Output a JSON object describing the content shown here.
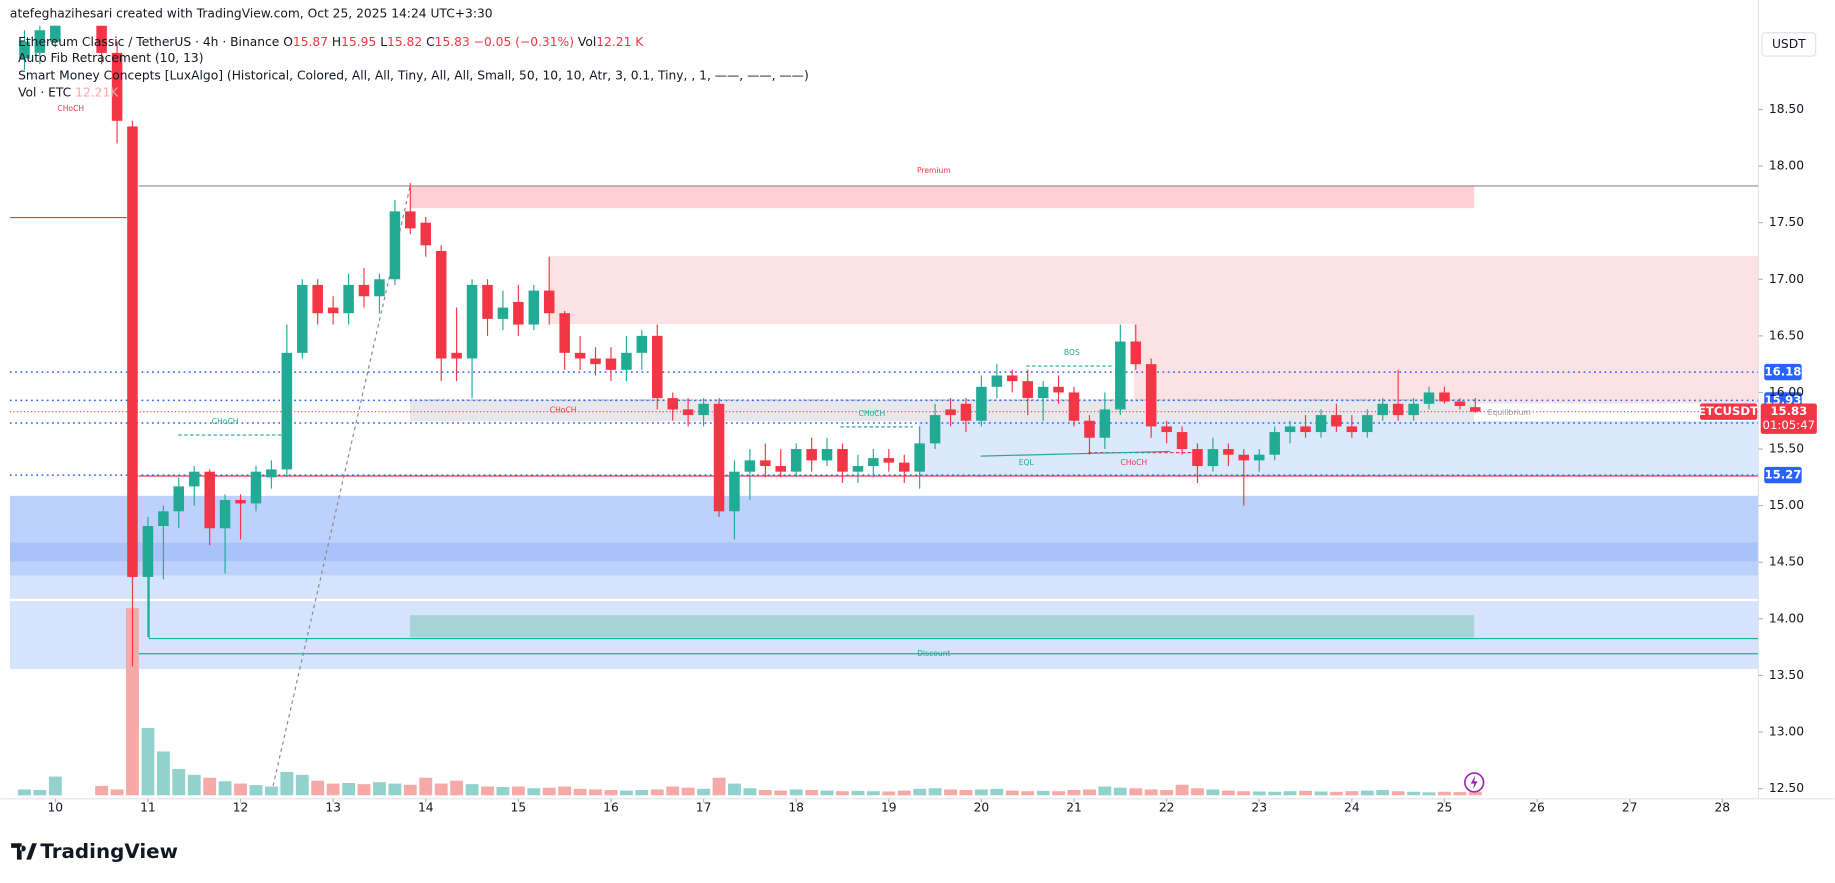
{
  "watermark": "atefeghazihesari created with TradingView.com, Oct 25, 2025 14:24 UTC+3:30",
  "logo": "TradingView",
  "currency": "USDT",
  "chart_data": {
    "type": "candlestick",
    "symbol_tag": "ETCUSDT",
    "countdown": "01:05:47",
    "legend": {
      "symbol": "Ethereum Classic / TetherUS · 4h · Binance",
      "ohlc": [
        "O",
        "H",
        "L",
        "C"
      ],
      "change": "−0.05 (−0.31%)",
      "vol": "Vol",
      "vol_value": "12.21 K",
      "indicators": [
        "Auto Fib Retracement (10, 13)",
        "Smart Money Concepts [LuxAlgo] (Historical, Colored, All, All, Tiny, All, All, Small, 50, 10, 10, Atr, 3, 0.1, Tiny, , 1, ——, ——, ——)"
      ],
      "volume_indicator": "Vol · ETC",
      "volume_indicator_value": "12.21K"
    },
    "annotations": {
      "premium": "Premium",
      "discount": "Discount",
      "equilibrium": "Equilibrium",
      "choch": "CHoCH",
      "bos": "BOS",
      "eql": "EQL"
    },
    "up_color": "#22ab94",
    "down_color": "#f23645",
    "up_volume_color": "#92d2cc",
    "down_volume_color": "#f7a9a7",
    "level_color": "#2962ff",
    "grid": false,
    "xlim": [
      9.51,
      28.39
    ],
    "xticks": [
      10,
      11,
      12,
      13,
      14,
      15,
      16,
      17,
      18,
      19,
      20,
      21,
      22,
      23,
      24,
      25,
      26,
      27,
      28
    ],
    "ylim": [
      12.41,
      19.24
    ],
    "yticks": [
      {
        "value": 12.5,
        "label": "12.50"
      },
      {
        "value": 13,
        "label": "13.00"
      },
      {
        "value": 13.5,
        "label": "13.50"
      },
      {
        "value": 14,
        "label": "14.00"
      },
      {
        "value": 14.5,
        "label": "14.50"
      },
      {
        "value": 15,
        "label": "15.00"
      },
      {
        "value": 15.5,
        "label": "15.50"
      },
      {
        "value": 16,
        "label": "16.00"
      },
      {
        "value": 16.5,
        "label": "16.50"
      },
      {
        "value": 17,
        "label": "17.00"
      },
      {
        "value": 17.5,
        "label": "17.50"
      },
      {
        "value": 18,
        "label": "18.00"
      },
      {
        "value": 18.5,
        "label": "18.50"
      }
    ],
    "levels": [
      16.18,
      15.93,
      15.73,
      15.27
    ],
    "candles": [
      {
        "x": 9.667,
        "open": 18.95,
        "high": 19.2,
        "low": 18.85,
        "close": 19.1,
        "volume": 20
      },
      {
        "x": 9.833,
        "open": 19.0,
        "high": 19.25,
        "low": 18.9,
        "close": 19.2,
        "volume": 18
      },
      {
        "x": 10.0,
        "open": 19.1,
        "high": 19.3,
        "low": 19.05,
        "close": 19.25,
        "volume": 64
      },
      {
        "x": 10.5,
        "open": 19.3,
        "high": 19.35,
        "low": 18.9,
        "close": 19.0,
        "volume": 32
      },
      {
        "x": 10.667,
        "open": 19.0,
        "high": 19.1,
        "low": 18.2,
        "close": 18.4,
        "volume": 20
      },
      {
        "x": 10.833,
        "open": 18.35,
        "high": 18.4,
        "low": 13.58,
        "close": 14.37,
        "volume": 640
      },
      {
        "x": 11.0,
        "open": 14.37,
        "high": 14.9,
        "low": 13.84,
        "close": 14.82,
        "volume": 230
      },
      {
        "x": 11.167,
        "open": 14.82,
        "high": 15.0,
        "low": 14.35,
        "close": 14.95,
        "volume": 150
      },
      {
        "x": 11.333,
        "open": 14.95,
        "high": 15.25,
        "low": 14.8,
        "close": 15.17,
        "volume": 90
      },
      {
        "x": 11.5,
        "open": 15.17,
        "high": 15.35,
        "low": 15.0,
        "close": 15.3,
        "volume": 70
      },
      {
        "x": 11.667,
        "open": 15.3,
        "high": 15.32,
        "low": 14.65,
        "close": 14.8,
        "volume": 60
      },
      {
        "x": 11.833,
        "open": 14.8,
        "high": 15.1,
        "low": 14.4,
        "close": 15.05,
        "volume": 48
      },
      {
        "x": 12.0,
        "open": 15.05,
        "high": 15.1,
        "low": 14.7,
        "close": 15.02,
        "volume": 40
      },
      {
        "x": 12.167,
        "open": 15.02,
        "high": 15.35,
        "low": 14.95,
        "close": 15.3,
        "volume": 35
      },
      {
        "x": 12.333,
        "open": 15.25,
        "high": 15.4,
        "low": 15.15,
        "close": 15.32,
        "volume": 30
      },
      {
        "x": 12.5,
        "open": 15.32,
        "high": 16.6,
        "low": 15.25,
        "close": 16.35,
        "volume": 80
      },
      {
        "x": 12.667,
        "open": 16.35,
        "high": 17.0,
        "low": 16.3,
        "close": 16.95,
        "volume": 70
      },
      {
        "x": 12.833,
        "open": 16.95,
        "high": 17.0,
        "low": 16.6,
        "close": 16.7,
        "volume": 50
      },
      {
        "x": 13.0,
        "open": 16.75,
        "high": 16.85,
        "low": 16.6,
        "close": 16.7,
        "volume": 40
      },
      {
        "x": 13.167,
        "open": 16.7,
        "high": 17.05,
        "low": 16.6,
        "close": 16.95,
        "volume": 42
      },
      {
        "x": 13.333,
        "open": 16.95,
        "high": 17.1,
        "low": 16.75,
        "close": 16.85,
        "volume": 38
      },
      {
        "x": 13.5,
        "open": 16.85,
        "high": 17.05,
        "low": 16.7,
        "close": 17.0,
        "volume": 45
      },
      {
        "x": 13.667,
        "open": 17.0,
        "high": 17.7,
        "low": 16.95,
        "close": 17.6,
        "volume": 40
      },
      {
        "x": 13.833,
        "open": 17.6,
        "high": 17.85,
        "low": 17.4,
        "close": 17.45,
        "volume": 36
      },
      {
        "x": 14.0,
        "open": 17.5,
        "high": 17.55,
        "low": 17.2,
        "close": 17.3,
        "volume": 60
      },
      {
        "x": 14.167,
        "open": 17.25,
        "high": 17.3,
        "low": 16.1,
        "close": 16.3,
        "volume": 40
      },
      {
        "x": 14.333,
        "open": 16.35,
        "high": 16.75,
        "low": 16.1,
        "close": 16.3,
        "volume": 50
      },
      {
        "x": 14.5,
        "open": 16.3,
        "high": 17.0,
        "low": 15.95,
        "close": 16.95,
        "volume": 38
      },
      {
        "x": 14.667,
        "open": 16.95,
        "high": 17.0,
        "low": 16.5,
        "close": 16.65,
        "volume": 30
      },
      {
        "x": 14.833,
        "open": 16.65,
        "high": 16.9,
        "low": 16.55,
        "close": 16.75,
        "volume": 28
      },
      {
        "x": 15.0,
        "open": 16.8,
        "high": 16.95,
        "low": 16.5,
        "close": 16.6,
        "volume": 30
      },
      {
        "x": 15.167,
        "open": 16.6,
        "high": 16.95,
        "low": 16.55,
        "close": 16.9,
        "volume": 24
      },
      {
        "x": 15.333,
        "open": 16.9,
        "high": 17.2,
        "low": 16.6,
        "close": 16.7,
        "volume": 26
      },
      {
        "x": 15.5,
        "open": 16.7,
        "high": 16.72,
        "low": 16.2,
        "close": 16.35,
        "volume": 30
      },
      {
        "x": 15.667,
        "open": 16.35,
        "high": 16.5,
        "low": 16.2,
        "close": 16.3,
        "volume": 22
      },
      {
        "x": 15.833,
        "open": 16.3,
        "high": 16.4,
        "low": 16.15,
        "close": 16.25,
        "volume": 20
      },
      {
        "x": 16.0,
        "open": 16.3,
        "high": 16.4,
        "low": 16.1,
        "close": 16.2,
        "volume": 18
      },
      {
        "x": 16.167,
        "open": 16.2,
        "high": 16.5,
        "low": 16.1,
        "close": 16.35,
        "volume": 16
      },
      {
        "x": 16.333,
        "open": 16.35,
        "high": 16.55,
        "low": 16.2,
        "close": 16.5,
        "volume": 18
      },
      {
        "x": 16.5,
        "open": 16.5,
        "high": 16.6,
        "low": 15.85,
        "close": 15.95,
        "volume": 20
      },
      {
        "x": 16.667,
        "open": 15.95,
        "high": 16.0,
        "low": 15.75,
        "close": 15.85,
        "volume": 30
      },
      {
        "x": 16.833,
        "open": 15.85,
        "high": 15.95,
        "low": 15.7,
        "close": 15.8,
        "volume": 26
      },
      {
        "x": 17.0,
        "open": 15.8,
        "high": 15.95,
        "low": 15.7,
        "close": 15.9,
        "volume": 22
      },
      {
        "x": 17.167,
        "open": 15.9,
        "high": 15.95,
        "low": 14.9,
        "close": 14.95,
        "volume": 60
      },
      {
        "x": 17.333,
        "open": 14.95,
        "high": 15.4,
        "low": 14.7,
        "close": 15.3,
        "volume": 40
      },
      {
        "x": 17.5,
        "open": 15.3,
        "high": 15.5,
        "low": 15.05,
        "close": 15.4,
        "volume": 24
      },
      {
        "x": 17.667,
        "open": 15.4,
        "high": 15.55,
        "low": 15.25,
        "close": 15.35,
        "volume": 18
      },
      {
        "x": 17.833,
        "open": 15.35,
        "high": 15.5,
        "low": 15.25,
        "close": 15.3,
        "volume": 16
      },
      {
        "x": 18.0,
        "open": 15.3,
        "high": 15.55,
        "low": 15.25,
        "close": 15.5,
        "volume": 20
      },
      {
        "x": 18.167,
        "open": 15.5,
        "high": 15.6,
        "low": 15.3,
        "close": 15.4,
        "volume": 18
      },
      {
        "x": 18.333,
        "open": 15.4,
        "high": 15.6,
        "low": 15.35,
        "close": 15.5,
        "volume": 16
      },
      {
        "x": 18.5,
        "open": 15.5,
        "high": 15.55,
        "low": 15.2,
        "close": 15.3,
        "volume": 14
      },
      {
        "x": 18.667,
        "open": 15.3,
        "high": 15.45,
        "low": 15.2,
        "close": 15.35,
        "volume": 15
      },
      {
        "x": 18.833,
        "open": 15.35,
        "high": 15.5,
        "low": 15.25,
        "close": 15.42,
        "volume": 14
      },
      {
        "x": 19.0,
        "open": 15.42,
        "high": 15.5,
        "low": 15.3,
        "close": 15.38,
        "volume": 13
      },
      {
        "x": 19.167,
        "open": 15.38,
        "high": 15.45,
        "low": 15.2,
        "close": 15.3,
        "volume": 16
      },
      {
        "x": 19.333,
        "open": 15.3,
        "high": 15.7,
        "low": 15.15,
        "close": 15.55,
        "volume": 22
      },
      {
        "x": 19.5,
        "open": 15.55,
        "high": 15.9,
        "low": 15.5,
        "close": 15.8,
        "volume": 24
      },
      {
        "x": 19.667,
        "open": 15.85,
        "high": 15.95,
        "low": 15.7,
        "close": 15.8,
        "volume": 20
      },
      {
        "x": 19.833,
        "open": 15.9,
        "high": 15.95,
        "low": 15.65,
        "close": 15.75,
        "volume": 18
      },
      {
        "x": 20.0,
        "open": 15.75,
        "high": 16.15,
        "low": 15.7,
        "close": 16.05,
        "volume": 20
      },
      {
        "x": 20.167,
        "open": 16.05,
        "high": 16.25,
        "low": 15.95,
        "close": 16.15,
        "volume": 22
      },
      {
        "x": 20.333,
        "open": 16.15,
        "high": 16.2,
        "low": 16.0,
        "close": 16.1,
        "volume": 16
      },
      {
        "x": 20.5,
        "open": 16.1,
        "high": 16.2,
        "low": 15.8,
        "close": 15.95,
        "volume": 14
      },
      {
        "x": 20.667,
        "open": 15.95,
        "high": 16.1,
        "low": 15.75,
        "close": 16.05,
        "volume": 15
      },
      {
        "x": 20.833,
        "open": 16.05,
        "high": 16.15,
        "low": 15.9,
        "close": 16.0,
        "volume": 14
      },
      {
        "x": 21.0,
        "open": 16.0,
        "high": 16.05,
        "low": 15.7,
        "close": 15.75,
        "volume": 18
      },
      {
        "x": 21.167,
        "open": 15.75,
        "high": 15.8,
        "low": 15.45,
        "close": 15.6,
        "volume": 20
      },
      {
        "x": 21.333,
        "open": 15.6,
        "high": 16.0,
        "low": 15.5,
        "close": 15.85,
        "volume": 30
      },
      {
        "x": 21.5,
        "open": 15.85,
        "high": 16.6,
        "low": 15.8,
        "close": 16.45,
        "volume": 26
      },
      {
        "x": 21.667,
        "open": 16.45,
        "high": 16.6,
        "low": 16.2,
        "close": 16.25,
        "volume": 24
      },
      {
        "x": 21.833,
        "open": 16.25,
        "high": 16.3,
        "low": 15.6,
        "close": 15.7,
        "volume": 20
      },
      {
        "x": 22.0,
        "open": 15.7,
        "high": 15.75,
        "low": 15.55,
        "close": 15.65,
        "volume": 18
      },
      {
        "x": 22.167,
        "open": 15.65,
        "high": 15.7,
        "low": 15.45,
        "close": 15.5,
        "volume": 36
      },
      {
        "x": 22.333,
        "open": 15.5,
        "high": 15.55,
        "low": 15.2,
        "close": 15.35,
        "volume": 24
      },
      {
        "x": 22.5,
        "open": 15.35,
        "high": 15.6,
        "low": 15.3,
        "close": 15.5,
        "volume": 20
      },
      {
        "x": 22.667,
        "open": 15.5,
        "high": 15.55,
        "low": 15.35,
        "close": 15.45,
        "volume": 16
      },
      {
        "x": 22.833,
        "open": 15.45,
        "high": 15.5,
        "low": 15.0,
        "close": 15.4,
        "volume": 14
      },
      {
        "x": 23.0,
        "open": 15.4,
        "high": 15.5,
        "low": 15.3,
        "close": 15.45,
        "volume": 13
      },
      {
        "x": 23.167,
        "open": 15.45,
        "high": 15.7,
        "low": 15.4,
        "close": 15.65,
        "volume": 12
      },
      {
        "x": 23.333,
        "open": 15.65,
        "high": 15.75,
        "low": 15.55,
        "close": 15.7,
        "volume": 14
      },
      {
        "x": 23.5,
        "open": 15.7,
        "high": 15.8,
        "low": 15.6,
        "close": 15.65,
        "volume": 15
      },
      {
        "x": 23.667,
        "open": 15.65,
        "high": 15.85,
        "low": 15.6,
        "close": 15.8,
        "volume": 13
      },
      {
        "x": 23.833,
        "open": 15.8,
        "high": 15.9,
        "low": 15.65,
        "close": 15.7,
        "volume": 12
      },
      {
        "x": 24.0,
        "open": 15.7,
        "high": 15.8,
        "low": 15.6,
        "close": 15.65,
        "volume": 14
      },
      {
        "x": 24.167,
        "open": 15.65,
        "high": 15.85,
        "low": 15.6,
        "close": 15.8,
        "volume": 16
      },
      {
        "x": 24.333,
        "open": 15.8,
        "high": 15.95,
        "low": 15.75,
        "close": 15.9,
        "volume": 18
      },
      {
        "x": 24.5,
        "open": 15.9,
        "high": 16.2,
        "low": 15.75,
        "close": 15.8,
        "volume": 14
      },
      {
        "x": 24.667,
        "open": 15.8,
        "high": 15.95,
        "low": 15.75,
        "close": 15.9,
        "volume": 12
      },
      {
        "x": 24.833,
        "open": 15.9,
        "high": 16.05,
        "low": 15.85,
        "close": 16.0,
        "volume": 10
      },
      {
        "x": 25.0,
        "open": 16.0,
        "high": 16.05,
        "low": 15.9,
        "close": 15.92,
        "volume": 12
      },
      {
        "x": 25.167,
        "open": 15.92,
        "high": 15.95,
        "low": 15.85,
        "close": 15.88,
        "volume": 11
      },
      {
        "x": 25.333,
        "open": 15.87,
        "high": 15.95,
        "low": 15.82,
        "close": 15.83,
        "volume": 12.21
      }
    ]
  }
}
